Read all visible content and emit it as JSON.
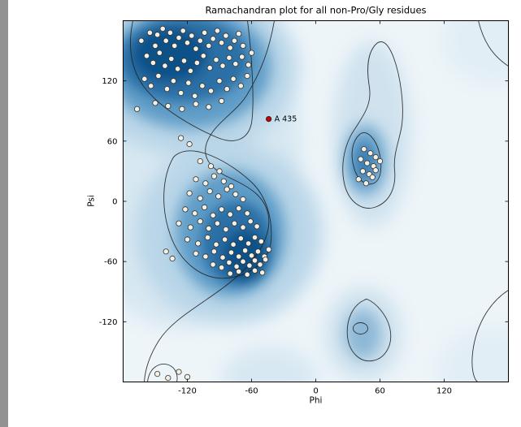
{
  "chart_data": {
    "type": "scatter",
    "title": "Ramachandran plot for all non-Pro/Gly residues",
    "xlabel": "Phi",
    "ylabel": "Psi",
    "xlim": [
      -180,
      180
    ],
    "ylim": [
      -180,
      180
    ],
    "xticks": [
      -120,
      -60,
      0,
      60,
      120
    ],
    "yticks": [
      120,
      60,
      0,
      -60,
      -120
    ],
    "grid": false,
    "legend": "none",
    "background_description": "2D blue density shading with black contour lines marking favored/allowed Ramachandran regions (beta-sheet upper-left, alpha-helix mid-left, left-handed alpha right-center, small region lower-right)",
    "colors": {
      "density_dark": "#115189",
      "density_mid": "#5e9cc7",
      "density_light": "#b9d6e8",
      "plot_background": "#eef5f9",
      "marker_fill": "#f5f0e4",
      "marker_edge": "#333333",
      "outlier_fill": "#cc0000",
      "contour_line": "#222222"
    },
    "series": [
      {
        "name": "residues",
        "marker": {
          "shape": "circle",
          "radius": 3.2,
          "fill": "#f5f0e4",
          "stroke": "#333333"
        },
        "points": [
          [
            -163,
            160
          ],
          [
            -155,
            168
          ],
          [
            -150,
            155
          ],
          [
            -148,
            166
          ],
          [
            -143,
            172
          ],
          [
            -140,
            160
          ],
          [
            -136,
            168
          ],
          [
            -132,
            155
          ],
          [
            -128,
            163
          ],
          [
            -124,
            170
          ],
          [
            -120,
            158
          ],
          [
            -116,
            165
          ],
          [
            -112,
            152
          ],
          [
            -108,
            160
          ],
          [
            -104,
            168
          ],
          [
            -100,
            155
          ],
          [
            -96,
            162
          ],
          [
            -92,
            170
          ],
          [
            -88,
            158
          ],
          [
            -84,
            165
          ],
          [
            -80,
            153
          ],
          [
            -76,
            160
          ],
          [
            -72,
            167
          ],
          [
            -68,
            155
          ],
          [
            -158,
            145
          ],
          [
            -152,
            138
          ],
          [
            -146,
            148
          ],
          [
            -141,
            135
          ],
          [
            -135,
            142
          ],
          [
            -129,
            132
          ],
          [
            -123,
            140
          ],
          [
            -117,
            130
          ],
          [
            -111,
            138
          ],
          [
            -105,
            145
          ],
          [
            -99,
            133
          ],
          [
            -93,
            141
          ],
          [
            -87,
            135
          ],
          [
            -81,
            143
          ],
          [
            -75,
            137
          ],
          [
            -69,
            144
          ],
          [
            -63,
            136
          ],
          [
            -160,
            122
          ],
          [
            -154,
            115
          ],
          [
            -147,
            125
          ],
          [
            -139,
            112
          ],
          [
            -133,
            120
          ],
          [
            -126,
            108
          ],
          [
            -119,
            118
          ],
          [
            -113,
            105
          ],
          [
            -106,
            115
          ],
          [
            -98,
            110
          ],
          [
            -90,
            120
          ],
          [
            -83,
            112
          ],
          [
            -77,
            122
          ],
          [
            -70,
            115
          ],
          [
            -64,
            125
          ],
          [
            -150,
            98
          ],
          [
            -138,
            95
          ],
          [
            -125,
            92
          ],
          [
            -112,
            97
          ],
          [
            -100,
            94
          ],
          [
            -88,
            100
          ],
          [
            -167,
            92
          ],
          [
            -60,
            148
          ],
          [
            -126,
            63
          ],
          [
            -118,
            57
          ],
          [
            -108,
            40
          ],
          [
            -98,
            35
          ],
          [
            -90,
            30
          ],
          [
            -112,
            22
          ],
          [
            -103,
            18
          ],
          [
            -95,
            25
          ],
          [
            -86,
            20
          ],
          [
            -79,
            15
          ],
          [
            -118,
            8
          ],
          [
            -108,
            3
          ],
          [
            -99,
            10
          ],
          [
            -91,
            5
          ],
          [
            -83,
            12
          ],
          [
            -75,
            7
          ],
          [
            -68,
            2
          ],
          [
            -122,
            -8
          ],
          [
            -113,
            -12
          ],
          [
            -104,
            -6
          ],
          [
            -96,
            -14
          ],
          [
            -88,
            -8
          ],
          [
            -80,
            -13
          ],
          [
            -72,
            -7
          ],
          [
            -64,
            -12
          ],
          [
            -128,
            -22
          ],
          [
            -117,
            -26
          ],
          [
            -108,
            -20
          ],
          [
            -100,
            -27
          ],
          [
            -92,
            -22
          ],
          [
            -84,
            -28
          ],
          [
            -76,
            -22
          ],
          [
            -68,
            -26
          ],
          [
            -61,
            -20
          ],
          [
            -55,
            -25
          ],
          [
            -120,
            -38
          ],
          [
            -110,
            -42
          ],
          [
            -101,
            -36
          ],
          [
            -93,
            -43
          ],
          [
            -85,
            -38
          ],
          [
            -77,
            -43
          ],
          [
            -70,
            -37
          ],
          [
            -63,
            -42
          ],
          [
            -57,
            -36
          ],
          [
            -51,
            -40
          ],
          [
            -112,
            -52
          ],
          [
            -103,
            -55
          ],
          [
            -95,
            -50
          ],
          [
            -87,
            -56
          ],
          [
            -79,
            -51
          ],
          [
            -72,
            -55
          ],
          [
            -66,
            -49
          ],
          [
            -60,
            -54
          ],
          [
            -54,
            -50
          ],
          [
            -48,
            -55
          ],
          [
            -44,
            -48
          ],
          [
            -96,
            -63
          ],
          [
            -88,
            -66
          ],
          [
            -81,
            -61
          ],
          [
            -74,
            -65
          ],
          [
            -68,
            -60
          ],
          [
            -62,
            -64
          ],
          [
            -57,
            -59
          ],
          [
            -52,
            -63
          ],
          [
            -47,
            -58
          ],
          [
            -80,
            -72
          ],
          [
            -72,
            -70
          ],
          [
            -64,
            -73
          ],
          [
            -57,
            -69
          ],
          [
            -50,
            -71
          ],
          [
            -140,
            -50
          ],
          [
            -134,
            -57
          ],
          [
            45,
            52
          ],
          [
            51,
            48
          ],
          [
            56,
            44
          ],
          [
            42,
            42
          ],
          [
            48,
            38
          ],
          [
            54,
            35
          ],
          [
            60,
            40
          ],
          [
            44,
            30
          ],
          [
            50,
            27
          ],
          [
            56,
            31
          ],
          [
            40,
            22
          ],
          [
            47,
            18
          ],
          [
            53,
            24
          ],
          [
            -148,
            -172
          ],
          [
            -138,
            -176
          ],
          [
            -128,
            -170
          ],
          [
            -120,
            -175
          ]
        ]
      },
      {
        "name": "outlier",
        "label": "A 435",
        "marker": {
          "shape": "circle",
          "radius": 3.2,
          "fill": "#cc0000",
          "stroke": "#222222"
        },
        "points": [
          [
            -44,
            82
          ]
        ]
      }
    ]
  }
}
